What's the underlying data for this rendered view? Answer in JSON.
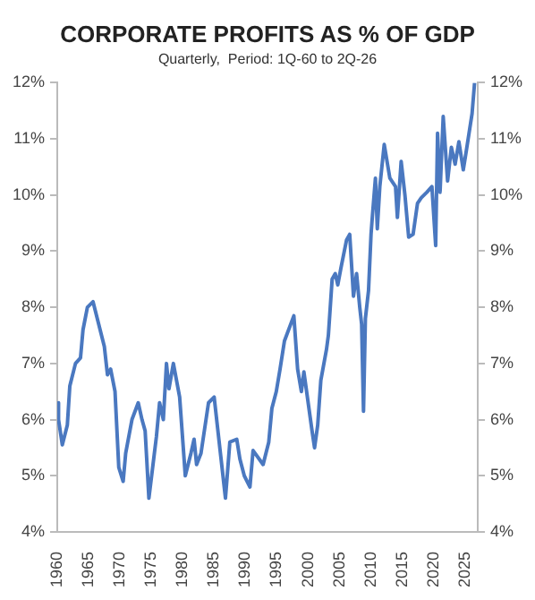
{
  "chart_data": {
    "type": "line",
    "title": "CORPORATE PROFITS AS % OF GDP",
    "subtitle": "Quarterly,  Period: 1Q-60 to 2Q-26",
    "xlim": [
      1960,
      2027
    ],
    "xticks": [
      1960,
      1965,
      1970,
      1975,
      1980,
      1985,
      1990,
      1995,
      2000,
      2005,
      2010,
      2015,
      2020,
      2025
    ],
    "ylim": [
      4,
      12
    ],
    "yticks": [
      {
        "value": 4,
        "label": "4%"
      },
      {
        "value": 5,
        "label": "5%"
      },
      {
        "value": 6,
        "label": "6%"
      },
      {
        "value": 7,
        "label": "7%"
      },
      {
        "value": 8,
        "label": "8%"
      },
      {
        "value": 9,
        "label": "9%"
      },
      {
        "value": 10,
        "label": "10%"
      },
      {
        "value": 11,
        "label": "11%"
      },
      {
        "value": 12,
        "label": "12%"
      }
    ],
    "y2lim": [
      4,
      12
    ],
    "y2ticks": [
      {
        "value": 4,
        "label": "4%"
      },
      {
        "value": 5,
        "label": "5%"
      },
      {
        "value": 6,
        "label": "6%"
      },
      {
        "value": 7,
        "label": "7%"
      },
      {
        "value": 8,
        "label": "8%"
      },
      {
        "value": 9,
        "label": "9%"
      },
      {
        "value": 10,
        "label": "10%"
      },
      {
        "value": 11,
        "label": "11%"
      },
      {
        "value": 12,
        "label": "12%"
      }
    ],
    "grid": false,
    "legend": false,
    "marker": "none",
    "line_style": "solid",
    "series": [
      {
        "color": "#4a78c0",
        "x": [
          1960.0,
          1960.2,
          1960.8,
          1961.6,
          1962.0,
          1962.9,
          1963.7,
          1964.1,
          1964.8,
          1965.7,
          1966.6,
          1967.5,
          1968.0,
          1968.5,
          1969.2,
          1969.8,
          1970.5,
          1970.9,
          1971.9,
          1972.9,
          1973.5,
          1974.0,
          1974.6,
          1975.8,
          1976.3,
          1976.9,
          1977.4,
          1977.8,
          1978.5,
          1979.5,
          1980.4,
          1981.3,
          1981.8,
          1982.2,
          1982.9,
          1984.1,
          1985.0,
          1986.8,
          1987.5,
          1988.6,
          1989.1,
          1989.8,
          1990.7,
          1991.2,
          1992.8,
          1993.7,
          1994.2,
          1994.9,
          1995.5,
          1996.2,
          1997.7,
          1998.3,
          1998.9,
          1999.3,
          2000.6,
          2001.0,
          2001.5,
          2002.0,
          2002.9,
          2003.2,
          2003.8,
          2004.3,
          2004.7,
          2005.2,
          2006.1,
          2006.6,
          2007.2,
          2007.7,
          2008.2,
          2008.5,
          2008.8,
          2009.1,
          2009.6,
          2010.0,
          2010.2,
          2010.7,
          2011.0,
          2011.4,
          2012.1,
          2013.0,
          2013.9,
          2014.2,
          2014.8,
          2015.4,
          2016.0,
          2016.7,
          2017.4,
          2018.0,
          2018.9,
          2019.7,
          2020.3,
          2020.6,
          2021.0,
          2021.5,
          2022.2,
          2022.8,
          2023.4,
          2024.0,
          2024.7,
          2025.2,
          2026.1,
          2026.5
        ],
        "values": [
          6.3,
          6.0,
          5.55,
          5.9,
          6.6,
          7.0,
          7.1,
          7.6,
          8.0,
          8.1,
          7.7,
          7.3,
          6.8,
          6.9,
          6.5,
          5.15,
          4.9,
          5.4,
          6.0,
          6.3,
          6.0,
          5.8,
          4.6,
          5.7,
          6.3,
          6.0,
          7.0,
          6.55,
          7.0,
          6.4,
          5.0,
          5.4,
          5.65,
          5.2,
          5.4,
          6.3,
          6.4,
          4.6,
          5.6,
          5.65,
          5.3,
          5.0,
          4.8,
          5.45,
          5.2,
          5.6,
          6.2,
          6.5,
          6.9,
          7.4,
          7.85,
          6.9,
          6.5,
          6.85,
          5.8,
          5.5,
          5.9,
          6.7,
          7.25,
          7.5,
          8.5,
          8.6,
          8.4,
          8.7,
          9.2,
          9.3,
          8.2,
          8.6,
          8.0,
          7.7,
          6.15,
          7.8,
          8.3,
          9.3,
          9.6,
          10.3,
          9.4,
          10.15,
          10.9,
          10.3,
          10.15,
          9.6,
          10.6,
          10.0,
          9.25,
          9.3,
          9.85,
          9.95,
          10.05,
          10.15,
          9.1,
          11.1,
          10.05,
          11.4,
          10.25,
          10.85,
          10.55,
          10.95,
          10.45,
          10.8,
          11.45,
          12.0
        ]
      }
    ]
  }
}
